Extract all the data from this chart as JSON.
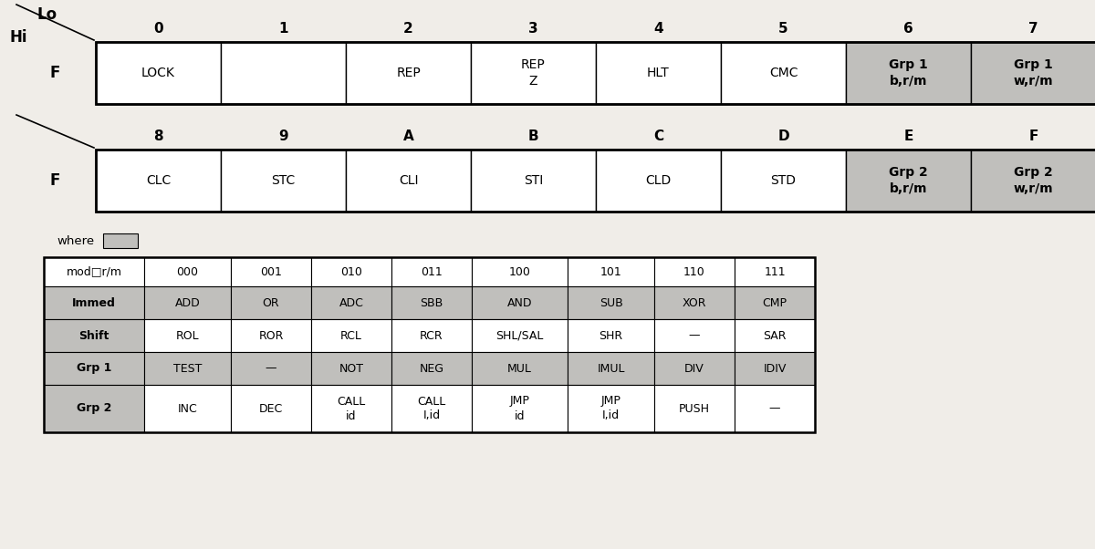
{
  "bg_color": "#f0ede8",
  "white": "#ffffff",
  "gray_cell": "#c0bfbc",
  "row1_headers": [
    "0",
    "1",
    "2",
    "3",
    "4",
    "5",
    "6",
    "7"
  ],
  "row2_headers": [
    "8",
    "9",
    "A",
    "B",
    "C",
    "D",
    "E",
    "F"
  ],
  "row1_cells": [
    "LOCK",
    "",
    "REP",
    "REP\nZ",
    "HLT",
    "CMC",
    "Grp 1\nb,r/m",
    "Grp 1\nw,r/m"
  ],
  "row2_cells": [
    "CLC",
    "STC",
    "CLI",
    "STI",
    "CLD",
    "STD",
    "Grp 2\nb,r/m",
    "Grp 2\nw,r/m"
  ],
  "row1_gray": [
    6,
    7
  ],
  "row2_gray": [
    6,
    7
  ],
  "table_col_headers": [
    "mod□r/m",
    "000",
    "001",
    "010",
    "011",
    "100",
    "101",
    "110",
    "111"
  ],
  "table_rows": [
    [
      "Immed",
      "ADD",
      "OR",
      "ADC",
      "SBB",
      "AND",
      "SUB",
      "XOR",
      "CMP"
    ],
    [
      "Shift",
      "ROL",
      "ROR",
      "RCL",
      "RCR",
      "SHL/SAL",
      "SHR",
      "—",
      "SAR"
    ],
    [
      "Grp 1",
      "TEST",
      "—",
      "NOT",
      "NEG",
      "MUL",
      "IMUL",
      "DIV",
      "IDIV"
    ],
    [
      "Grp 2",
      "INC",
      "DEC",
      "CALL\nid",
      "CALL\nI,id",
      "JMP\nid",
      "JMP\nI,id",
      "PUSH",
      "—"
    ]
  ],
  "hi_label": "Hi",
  "lo_label": "Lo",
  "f_label": "F",
  "where_label": "where"
}
